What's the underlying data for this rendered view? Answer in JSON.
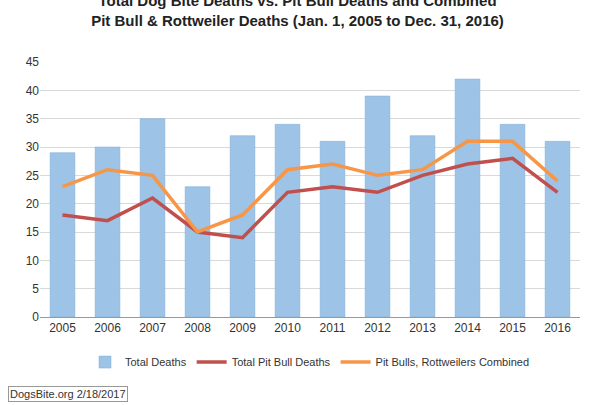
{
  "chart_data": {
    "type": "bar",
    "title": "Total Dog Bite Deaths vs. Pit Bull Deaths and Combined\nPit Bull & Rottweiler Deaths (Jan. 1, 2005 to Dec. 31, 2016)",
    "categories": [
      "2005",
      "2006",
      "2007",
      "2008",
      "2009",
      "2010",
      "2011",
      "2012",
      "2013",
      "2014",
      "2015",
      "2016"
    ],
    "series": [
      {
        "name": "Total Deaths",
        "type": "bar",
        "color": "#9dc3e6",
        "values": [
          29,
          30,
          35,
          23,
          32,
          34,
          31,
          39,
          32,
          42,
          34,
          31
        ]
      },
      {
        "name": "Total Pit Bull Deaths",
        "type": "line",
        "color": "#c0504d",
        "marker": "none",
        "values": [
          18,
          17,
          21,
          15,
          14,
          22,
          23,
          22,
          25,
          27,
          28,
          22
        ]
      },
      {
        "name": "Pit Bulls, Rottweilers Combined",
        "type": "line",
        "color": "#f79646",
        "marker": "none",
        "values": [
          23,
          26,
          25,
          15,
          18,
          26,
          27,
          25,
          26,
          31,
          31,
          24
        ]
      }
    ],
    "ylim": [
      0,
      45
    ],
    "yticks": [
      0,
      5,
      10,
      15,
      20,
      25,
      30,
      35,
      40,
      45
    ],
    "grid": true,
    "legend": "bottom",
    "annotations": [
      "DogsBite.org 2/18/2017"
    ]
  }
}
